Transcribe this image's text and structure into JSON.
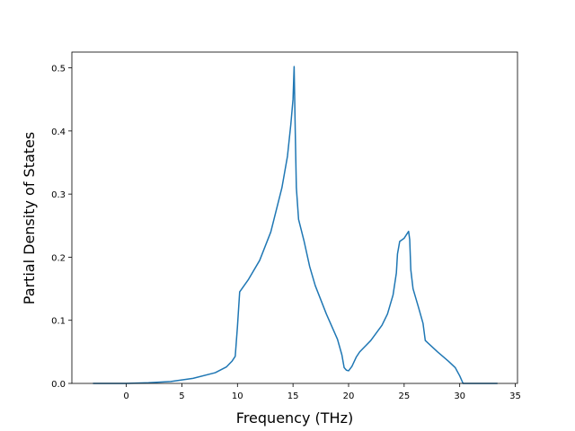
{
  "chart_data": {
    "type": "line",
    "xlabel": "Frequency (THz)",
    "ylabel": "Partial Density of States",
    "x": [
      -3,
      0,
      2,
      4,
      6,
      8,
      9,
      9.5,
      9.8,
      10,
      10.2,
      11,
      12,
      13,
      14,
      14.5,
      14.8,
      15,
      15.1,
      15.2,
      15.3,
      15.5,
      16,
      16.5,
      17,
      18,
      19,
      19.4,
      19.6,
      19.8,
      20,
      20.3,
      20.7,
      21,
      22,
      23,
      23.5,
      24,
      24.3,
      24.4,
      24.6,
      25,
      25.4,
      25.5,
      25.6,
      25.8,
      26.3,
      26.7,
      26.9,
      28,
      29,
      29.6,
      30,
      30.3,
      33.4
    ],
    "series": [
      {
        "name": "PDOS",
        "color": "#1f77b4",
        "values": [
          0,
          0,
          0.001,
          0.003,
          0.008,
          0.017,
          0.026,
          0.035,
          0.043,
          0.09,
          0.145,
          0.165,
          0.195,
          0.24,
          0.31,
          0.36,
          0.41,
          0.45,
          0.502,
          0.4,
          0.31,
          0.26,
          0.225,
          0.185,
          0.155,
          0.11,
          0.07,
          0.045,
          0.025,
          0.021,
          0.02,
          0.027,
          0.042,
          0.05,
          0.068,
          0.092,
          0.11,
          0.14,
          0.175,
          0.205,
          0.225,
          0.23,
          0.241,
          0.228,
          0.18,
          0.15,
          0.12,
          0.095,
          0.068,
          0.05,
          0.035,
          0.025,
          0.012,
          0,
          0
        ]
      }
    ],
    "xlim": [
      -4.9,
      35.2
    ],
    "ylim": [
      0,
      0.525
    ],
    "xticks": [
      0,
      5,
      10,
      15,
      20,
      25,
      30,
      35
    ],
    "yticks": [
      {
        "value": 0,
        "label": "0.0"
      },
      0.1,
      0.2,
      0.3,
      0.4,
      0.5
    ]
  }
}
